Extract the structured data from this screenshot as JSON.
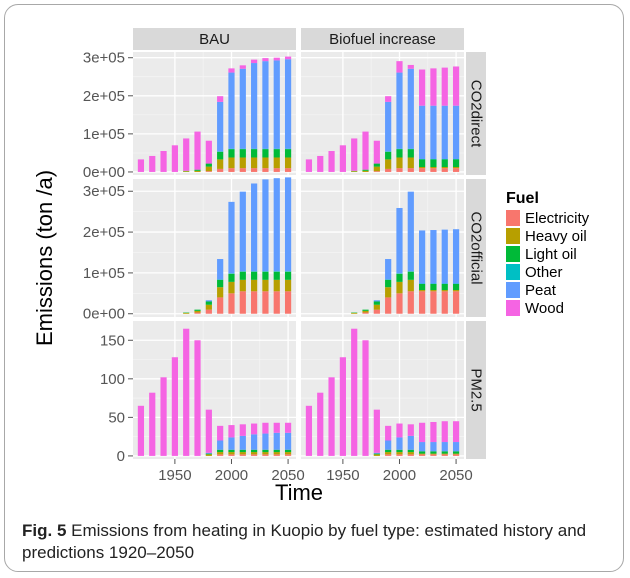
{
  "figure": {
    "caption_label": "Fig. 5",
    "caption_text": " Emissions from heating in Kuopio by fuel type: estimated history and predictions 1920–2050"
  },
  "colors": {
    "Electricity": "#F8766D",
    "Heavy oil": "#B79F00",
    "Light oil": "#00BA38",
    "Other": "#00BFC4",
    "Peat": "#619CFF",
    "Wood": "#F564E3",
    "panel_bg": "#EBEBEB",
    "strip_bg": "#D9D9D9",
    "grid_major": "#FFFFFF",
    "grid_minor": "#F5F5F5"
  },
  "chart_data": {
    "type": "bar",
    "stacked": true,
    "xlabel": "Time",
    "ylabel": "Emissions (ton /a)",
    "x_ticks": [
      "1950",
      "2000",
      "2050"
    ],
    "x_tick_values": [
      1950,
      2000,
      2050
    ],
    "xlim": [
      1913,
      2057
    ],
    "x": [
      1920,
      1930,
      1940,
      1950,
      1960,
      1970,
      1980,
      1990,
      2000,
      2010,
      2020,
      2030,
      2040,
      2050
    ],
    "legend": {
      "title": "Fuel",
      "position": "right",
      "entries": [
        "Electricity",
        "Heavy oil",
        "Light oil",
        "Other",
        "Peat",
        "Wood"
      ]
    },
    "col_facets": [
      "BAU",
      "Biofuel increase"
    ],
    "row_facets": [
      {
        "label": "CO2direct",
        "ylim": [
          -8000,
          315000
        ],
        "y_ticks": [
          "0e+00",
          "1e+05",
          "2e+05",
          "3e+05"
        ],
        "y_tick_values": [
          0,
          100000,
          200000,
          300000
        ],
        "panels": {
          "BAU": {
            "Electricity": [
              0,
              0,
              0,
              0,
              0,
              0,
              2000,
              8000,
              10000,
              10000,
              10000,
              10000,
              10000,
              10000
            ],
            "Heavy oil": [
              0,
              0,
              0,
              0,
              2000,
              3000,
              12000,
              25000,
              28000,
              28000,
              28000,
              28000,
              28000,
              28000
            ],
            "Light oil": [
              0,
              0,
              0,
              0,
              1000,
              3000,
              8000,
              20000,
              22000,
              22000,
              22000,
              22000,
              22000,
              22000
            ],
            "Other": [
              0,
              0,
              0,
              0,
              0,
              0,
              0,
              1000,
              1000,
              1000,
              1000,
              1000,
              1000,
              1000
            ],
            "Peat": [
              0,
              0,
              0,
              0,
              0,
              0,
              0,
              130000,
              200000,
              210000,
              225000,
              230000,
              232000,
              235000
            ],
            "Wood": [
              33000,
              42000,
              55000,
              70000,
              85000,
              100000,
              60000,
              15000,
              11000,
              9000,
              9000,
              8000,
              7000,
              7000
            ]
          },
          "Biofuel increase": {
            "Electricity": [
              0,
              0,
              0,
              0,
              0,
              0,
              2000,
              8000,
              10000,
              10000,
              10000,
              10000,
              10000,
              10000
            ],
            "Heavy oil": [
              0,
              0,
              0,
              0,
              2000,
              3000,
              12000,
              25000,
              28000,
              28000,
              3000,
              3000,
              3000,
              3000
            ],
            "Light oil": [
              0,
              0,
              0,
              0,
              1000,
              3000,
              8000,
              20000,
              22000,
              22000,
              20000,
              20000,
              20000,
              20000
            ],
            "Other": [
              0,
              0,
              0,
              0,
              0,
              0,
              0,
              1000,
              1000,
              1000,
              1000,
              1000,
              1000,
              1000
            ],
            "Peat": [
              0,
              0,
              0,
              0,
              0,
              0,
              0,
              130000,
              200000,
              210000,
              140000,
              140000,
              140000,
              140000
            ],
            "Wood": [
              33000,
              42000,
              55000,
              70000,
              85000,
              100000,
              60000,
              15000,
              30000,
              10000,
              95000,
              98000,
              100000,
              103000
            ]
          }
        }
      },
      {
        "label": "CO2official",
        "ylim": [
          -8000,
          330000
        ],
        "y_ticks": [
          "0e+00",
          "1e+05",
          "2e+05",
          "3e+05"
        ],
        "y_tick_values": [
          0,
          100000,
          200000,
          300000
        ],
        "panels": {
          "BAU": {
            "Electricity": [
              0,
              0,
              0,
              0,
              0,
              3000,
              10000,
              40000,
              50000,
              55000,
              55000,
              55000,
              55000,
              55000
            ],
            "Heavy oil": [
              0,
              0,
              0,
              0,
              2000,
              4000,
              12000,
              25000,
              28000,
              28000,
              28000,
              28000,
              28000,
              28000
            ],
            "Light oil": [
              0,
              0,
              0,
              0,
              1000,
              3000,
              8000,
              18000,
              20000,
              20000,
              20000,
              20000,
              20000,
              20000
            ],
            "Other": [
              0,
              0,
              0,
              0,
              0,
              0,
              0,
              1000,
              1000,
              1000,
              1000,
              1000,
              1000,
              1000
            ],
            "Peat": [
              0,
              0,
              0,
              0,
              0,
              0,
              3000,
              50000,
              175000,
              195000,
              215000,
              225000,
              228000,
              230000
            ],
            "Wood": [
              0,
              0,
              0,
              0,
              0,
              0,
              0,
              0,
              0,
              0,
              0,
              0,
              0,
              0
            ]
          },
          "Biofuel increase": {
            "Electricity": [
              0,
              0,
              0,
              0,
              0,
              3000,
              10000,
              40000,
              50000,
              55000,
              55000,
              55000,
              55000,
              55000
            ],
            "Heavy oil": [
              0,
              0,
              0,
              0,
              2000,
              4000,
              12000,
              25000,
              28000,
              28000,
              3000,
              3000,
              3000,
              3000
            ],
            "Light oil": [
              0,
              0,
              0,
              0,
              1000,
              3000,
              8000,
              18000,
              20000,
              20000,
              15000,
              15000,
              15000,
              15000
            ],
            "Other": [
              0,
              0,
              0,
              0,
              0,
              0,
              0,
              1000,
              1000,
              1000,
              1000,
              1000,
              1000,
              1000
            ],
            "Peat": [
              0,
              0,
              0,
              0,
              0,
              0,
              3000,
              50000,
              160000,
              195000,
              130000,
              131000,
              132000,
              133000
            ],
            "Wood": [
              0,
              0,
              0,
              0,
              0,
              0,
              0,
              0,
              0,
              0,
              0,
              0,
              0,
              0
            ]
          }
        }
      },
      {
        "label": "PM2.5",
        "ylim": [
          -4,
          175
        ],
        "y_ticks": [
          "0",
          "50",
          "100",
          "150"
        ],
        "y_tick_values": [
          0,
          50,
          100,
          150
        ],
        "panels": {
          "BAU": {
            "Electricity": [
              0,
              0,
              0,
              0,
              0,
              0,
              0,
              2,
              2,
              2,
              2,
              2,
              2,
              2
            ],
            "Heavy oil": [
              0,
              0,
              0,
              0,
              0,
              0,
              2,
              3,
              3,
              3,
              3,
              3,
              3,
              3
            ],
            "Light oil": [
              0,
              0,
              0,
              0,
              0,
              0,
              1,
              3,
              3,
              3,
              3,
              3,
              3,
              3
            ],
            "Other": [
              0,
              0,
              0,
              0,
              0,
              0,
              0,
              0,
              0,
              0,
              0,
              0,
              0,
              0
            ],
            "Peat": [
              0,
              0,
              0,
              0,
              0,
              0,
              1,
              12,
              16,
              18,
              20,
              21,
              22,
              22
            ],
            "Wood": [
              65,
              82,
              102,
              128,
              165,
              150,
              56,
              19,
              16,
              15,
              14,
              14,
              13,
              13
            ]
          },
          "Biofuel increase": {
            "Electricity": [
              0,
              0,
              0,
              0,
              0,
              0,
              0,
              2,
              2,
              2,
              2,
              2,
              2,
              2
            ],
            "Heavy oil": [
              0,
              0,
              0,
              0,
              0,
              0,
              2,
              3,
              3,
              3,
              1,
              1,
              1,
              1
            ],
            "Light oil": [
              0,
              0,
              0,
              0,
              0,
              0,
              1,
              3,
              3,
              3,
              3,
              3,
              3,
              3
            ],
            "Other": [
              0,
              0,
              0,
              0,
              0,
              0,
              0,
              0,
              0,
              0,
              0,
              0,
              0,
              0
            ],
            "Peat": [
              0,
              0,
              0,
              0,
              0,
              0,
              1,
              12,
              16,
              18,
              12,
              12,
              12,
              12
            ],
            "Wood": [
              65,
              82,
              102,
              128,
              165,
              150,
              56,
              19,
              18,
              15,
              25,
              26,
              27,
              27
            ]
          }
        }
      }
    ]
  }
}
